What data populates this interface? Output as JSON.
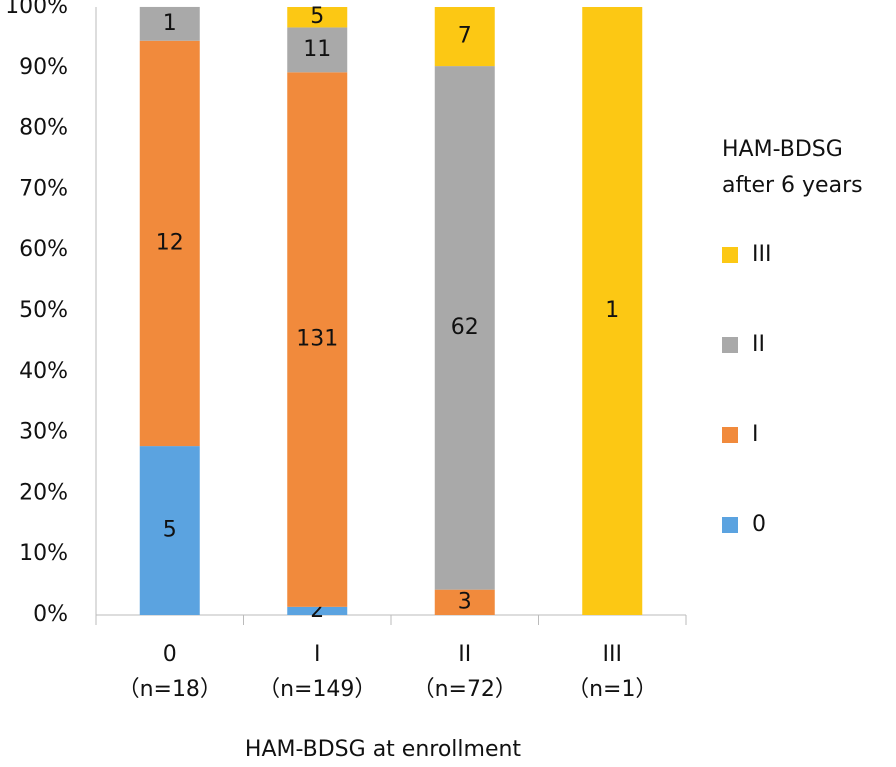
{
  "chart_data": {
    "type": "stacked_bar_percent",
    "xlabel": "HAM-BDSG at enrollment",
    "legend_title": [
      "HAM-BDSG",
      "after 6 years"
    ],
    "legend_position": "right",
    "categories": [
      "0",
      "I",
      "II",
      "III"
    ],
    "subcategories": [
      "（n=18）",
      "（n=149）",
      "（n=72）",
      "（n=1）"
    ],
    "series": [
      {
        "name": "0",
        "color": "#5ba3e0",
        "values": [
          27.78,
          1.34,
          0,
          0
        ],
        "counts": [
          5,
          2,
          null,
          null
        ]
      },
      {
        "name": "I",
        "color": "#f18a3c",
        "values": [
          66.67,
          87.92,
          4.17,
          0
        ],
        "counts": [
          12,
          131,
          3,
          null
        ]
      },
      {
        "name": "II",
        "color": "#a9a9a9",
        "values": [
          5.56,
          7.38,
          86.11,
          0
        ],
        "counts": [
          1,
          11,
          62,
          null
        ]
      },
      {
        "name": "III",
        "color": "#fcc814",
        "values": [
          0,
          3.36,
          9.72,
          100
        ],
        "counts": [
          null,
          5,
          7,
          1
        ]
      }
    ],
    "ylim": [
      0,
      100
    ],
    "yticks": [
      {
        "value": 0,
        "label": "0%"
      },
      {
        "value": 10,
        "label": "10%"
      },
      {
        "value": 20,
        "label": "20%"
      },
      {
        "value": 30,
        "label": "30%"
      },
      {
        "value": 40,
        "label": "40%"
      },
      {
        "value": 50,
        "label": "50%"
      },
      {
        "value": 60,
        "label": "60%"
      },
      {
        "value": 70,
        "label": "70%"
      },
      {
        "value": 80,
        "label": "80%"
      },
      {
        "value": 90,
        "label": "90%"
      },
      {
        "value": 100,
        "label": "100%"
      }
    ],
    "grid": false
  }
}
